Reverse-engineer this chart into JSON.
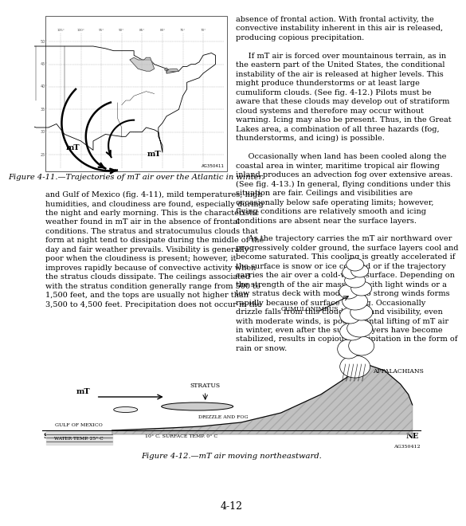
{
  "bg_color": "#f5f5f0",
  "page_color": "#ffffff",
  "page_number": "4-12",
  "fig4_11_caption": "Figure 4-11.—Trajectories of mT air over the Atlantic in winter.",
  "fig4_12_caption": "Figure 4-12.—mT air moving northeastward.",
  "left_text": "and Gulf of Mexico (fig. 4-11), mild temperatures, high\nhumidities, and cloudiness are found, especially during\nthe night and early morning. This is the characteristic\nweather found in mT air in the absence of frontal\nconditions. The stratus and stratocumulus clouds that\nform at night tend to dissipate during the middle of the\nday and fair weather prevails. Visibility is generally\npoor when the cloudiness is present; however, it\nimproves rapidly because of convective activity when\nthe stratus clouds dissipate. The ceilings associated\nwith the stratus condition generally range from 500 to\n1,500 feet, and the tops are usually not higher than\n3,500 to 4,500 feet. Precipitation does not occur in the",
  "right_text_top": "absence of frontal action. With frontal activity, the\nconvective instability inherent in this air is released,\nproducing copious precipitation.\n\n     If mT air is forced over mountainous terrain, as in\nthe eastern part of the United States, the conditional\ninstability of the air is released at higher levels. This\nmight produce thunderstorms or at least large\ncumuliform clouds. (See fig. 4-12.) Pilots must be\naware that these clouds may develop out of stratiform\ncloud systems and therefore may occur without\nwarning. Icing may also be present. Thus, in the Great\nLakes area, a combination of all three hazards (fog,\nthunderstorms, and icing) is possible.\n\n     Occasionally when land has been cooled along the\ncoastal area in winter, maritime tropical air flowing\ninland produces an advection fog over extensive areas.\n(See fig. 4-13.) In general, flying conditions under this\nsituation are fair. Ceilings and visibilities are\noccasionally below safe operating limits; however,\nflying conditions are relatively smooth and icing\nconditions are absent near the surface layers.\n\n     As the trajectory carries the mT air northward over\nprogressively colder ground, the surface layers cool and\nbecome saturated. This cooling is greatly accelerated if\nthe surface is snow or ice covered or if the trajectory\ncarries the air over a cold-water surface. Depending on\nthe strength of the air mass, fog with light winds or a\nlow stratus deck with moderate to strong winds forms\nrapidly because of surface cooling. Occasionally\ndrizzle falls from this cloud form; and visibility, even\nwith moderate winds, is poor. Frontal lifting of mT air\nin winter, even after the surface layers have become\nstabilized, results in copious precipitation in the form of\nrain or snow.",
  "ag_code_fig11": "AG350411",
  "ag_code_fig12": "AG350412",
  "text_color": "#000000",
  "font_size_body": 7.0,
  "font_size_caption": 7.2,
  "font_size_page_num": 9
}
